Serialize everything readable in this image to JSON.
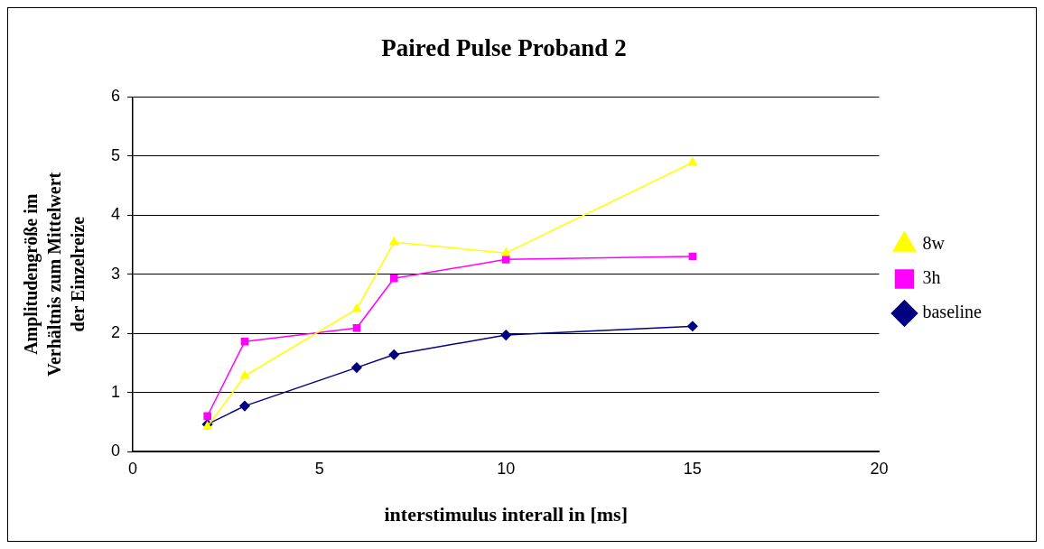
{
  "chart_data": {
    "type": "line",
    "title": "Paired Pulse Proband 2",
    "xlabel": "interstimulus interall in [ms]",
    "ylabel": "Amplitudengröße im\nVerhältnis zum Mittelwert\nder Einzelreize",
    "x": [
      2,
      3,
      6,
      7,
      10,
      15
    ],
    "series": [
      {
        "name": "baseline",
        "color": "#000080",
        "marker": "diamond",
        "values": [
          0.46,
          0.77,
          1.42,
          1.64,
          1.97,
          2.12
        ]
      },
      {
        "name": "3h",
        "color": "#ff00ff",
        "marker": "square",
        "values": [
          0.6,
          1.86,
          2.09,
          2.93,
          3.25,
          3.3
        ]
      },
      {
        "name": "8w",
        "color": "#ffff00",
        "marker": "triangle",
        "values": [
          0.42,
          1.28,
          2.41,
          3.54,
          3.36,
          4.89
        ]
      }
    ],
    "xlim": [
      0,
      20
    ],
    "xticks": [
      0,
      5,
      10,
      15,
      20
    ],
    "ylim": [
      0,
      6
    ],
    "yticks": [
      0,
      1,
      2,
      3,
      4,
      5,
      6
    ],
    "grid": "y",
    "legend": "right",
    "line_style": "solid"
  }
}
